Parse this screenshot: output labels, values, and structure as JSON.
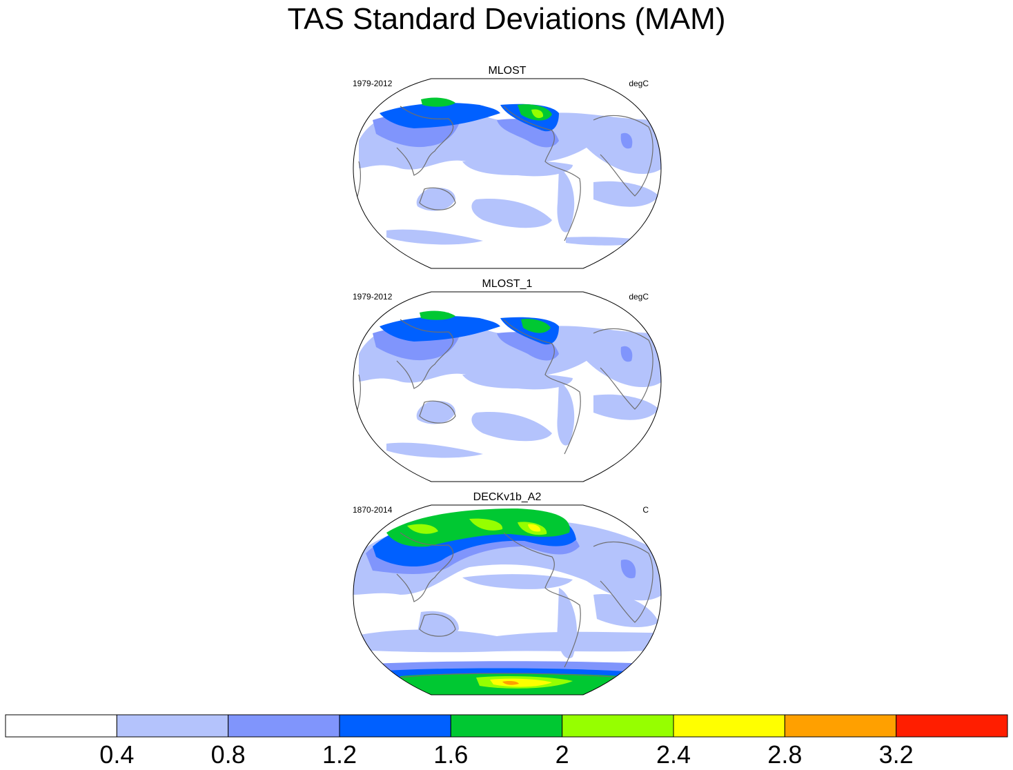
{
  "title": "TAS Standard Deviations (MAM)",
  "panels": [
    {
      "name": "MLOST",
      "period": "1979-2012",
      "units": "degC"
    },
    {
      "name": "MLOST_1",
      "period": "1979-2012",
      "units": "degC"
    },
    {
      "name": "DECKv1b_A2",
      "period": "1870-2014",
      "units": "C"
    }
  ],
  "colorbar": {
    "labels": [
      "0.4",
      "0.8",
      "1.2",
      "1.6",
      "2",
      "2.4",
      "2.8",
      "3.2"
    ],
    "colors": [
      "#ffffff",
      "#b4c3fc",
      "#8095fc",
      "#0060ff",
      "#00c832",
      "#96ff00",
      "#ffff00",
      "#ffa000",
      "#ff1e00"
    ]
  }
}
